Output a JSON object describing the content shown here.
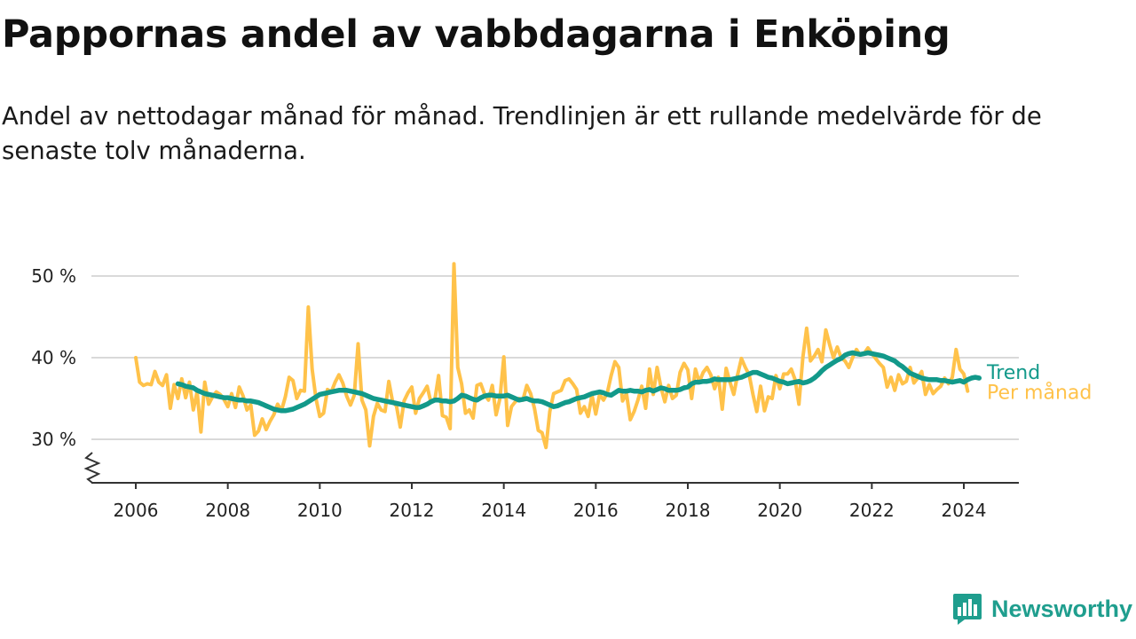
{
  "title": "Pappornas andel av vabbdagarna i Enköping",
  "subtitle": "Andel av nettodagar månad för månad. Trendlinjen är ett rullande medelvärde för de senaste tolv månaderna.",
  "brand": {
    "name": "Newsworthy",
    "color": "#1f9e8e"
  },
  "colors": {
    "monthly": "#ffc24a",
    "trend": "#12998a",
    "grid": "#d9d9d9",
    "axis": "#333333"
  },
  "chart_data": {
    "type": "line",
    "xlabel": "",
    "ylabel": "",
    "ylim": [
      25,
      52
    ],
    "y_ticks": [
      30,
      40,
      50
    ],
    "y_tick_labels": [
      "30 %",
      "40 %",
      "50 %"
    ],
    "x_ticks": [
      2006,
      2008,
      2010,
      2012,
      2014,
      2016,
      2018,
      2020,
      2022,
      2024
    ],
    "x_tick_labels": [
      "2006",
      "2008",
      "2010",
      "2012",
      "2014",
      "2016",
      "2018",
      "2020",
      "2022",
      "2024"
    ],
    "grid": true,
    "axis_break": true,
    "legend": "right-end",
    "series": [
      {
        "name": "Per månad",
        "label": "Per månad",
        "x_start": 2006.0,
        "step": 0.08333,
        "values": [
          40.0,
          37.0,
          36.6,
          36.8,
          36.7,
          38.3,
          37.0,
          36.6,
          37.9,
          33.8,
          36.7,
          35.0,
          37.4,
          35.1,
          37.0,
          33.6,
          35.8,
          30.9,
          37.0,
          34.3,
          35.2,
          35.8,
          35.5,
          34.9,
          34.0,
          35.6,
          33.9,
          36.4,
          35.3,
          33.6,
          34.2,
          30.5,
          31.0,
          32.5,
          31.2,
          32.2,
          33.0,
          34.3,
          33.5,
          35.2,
          37.6,
          37.2,
          35.0,
          36.0,
          35.9,
          46.2,
          38.6,
          35.0,
          32.8,
          33.2,
          36.1,
          35.8,
          37.0,
          37.9,
          36.9,
          35.3,
          34.2,
          35.4,
          41.7,
          34.8,
          33.6,
          29.2,
          32.8,
          34.4,
          33.6,
          33.4,
          37.1,
          34.6,
          34.1,
          31.5,
          34.7,
          35.7,
          36.4,
          33.2,
          35.0,
          35.7,
          36.5,
          34.5,
          34.8,
          37.8,
          32.9,
          32.7,
          31.3,
          51.5,
          38.8,
          36.8,
          33.2,
          33.6,
          32.6,
          36.6,
          36.8,
          35.5,
          34.8,
          36.6,
          33.0,
          35.0,
          40.1,
          31.7,
          34.0,
          34.6,
          35.0,
          34.8,
          36.6,
          35.6,
          33.8,
          31.1,
          30.8,
          29.0,
          33.4,
          35.6,
          35.8,
          36.0,
          37.2,
          37.4,
          36.8,
          36.1,
          33.2,
          34.0,
          32.8,
          35.4,
          33.1,
          35.5,
          34.8,
          35.7,
          37.8,
          39.5,
          38.8,
          34.7,
          35.6,
          32.4,
          33.4,
          34.8,
          36.5,
          33.8,
          38.6,
          35.5,
          38.8,
          36.4,
          34.6,
          36.6,
          35.0,
          35.4,
          38.2,
          39.3,
          38.5,
          35.0,
          38.6,
          37.0,
          38.2,
          38.8,
          37.9,
          36.2,
          37.6,
          33.7,
          38.7,
          37.0,
          35.5,
          37.9,
          39.9,
          38.8,
          37.9,
          35.5,
          33.4,
          36.5,
          33.5,
          35.2,
          35.0,
          37.8,
          36.2,
          38.0,
          38.0,
          38.6,
          37.3,
          34.3,
          40.0,
          43.6,
          39.6,
          40.2,
          41.0,
          39.5,
          43.4,
          41.6,
          40.0,
          41.3,
          40.0,
          39.6,
          38.8,
          40.0,
          41.0,
          40.3,
          40.5,
          41.2,
          40.5,
          39.9,
          39.3,
          38.8,
          36.4,
          37.6,
          36.0,
          37.9,
          36.8,
          37.1,
          38.8,
          36.9,
          37.5,
          38.3,
          35.5,
          36.7,
          35.6,
          36.1,
          36.5,
          37.5,
          36.8,
          37.6,
          41.0,
          38.6,
          38.0,
          35.9
        ]
      },
      {
        "name": "Trend",
        "label": "Trend",
        "x_start": 2006.917,
        "step": 0.08333,
        "values": [
          36.8,
          36.7,
          36.5,
          36.4,
          36.3,
          36.0,
          35.8,
          35.6,
          35.5,
          35.4,
          35.3,
          35.2,
          35.1,
          35.1,
          35.0,
          34.9,
          34.8,
          34.8,
          34.7,
          34.7,
          34.6,
          34.5,
          34.3,
          34.1,
          33.9,
          33.7,
          33.6,
          33.5,
          33.5,
          33.6,
          33.7,
          33.9,
          34.1,
          34.3,
          34.6,
          34.9,
          35.2,
          35.5,
          35.6,
          35.7,
          35.8,
          35.9,
          36.0,
          36.0,
          36.0,
          35.9,
          35.8,
          35.7,
          35.6,
          35.4,
          35.2,
          35.0,
          34.9,
          34.8,
          34.7,
          34.6,
          34.5,
          34.4,
          34.3,
          34.2,
          34.1,
          34.0,
          33.9,
          33.9,
          34.1,
          34.3,
          34.6,
          34.8,
          34.8,
          34.7,
          34.7,
          34.6,
          34.7,
          35.0,
          35.4,
          35.3,
          35.1,
          34.9,
          34.8,
          35.1,
          35.3,
          35.4,
          35.4,
          35.3,
          35.3,
          35.3,
          35.4,
          35.2,
          35.0,
          34.8,
          34.9,
          35.0,
          34.8,
          34.7,
          34.7,
          34.6,
          34.4,
          34.2,
          34.0,
          34.1,
          34.3,
          34.5,
          34.6,
          34.8,
          35.0,
          35.1,
          35.2,
          35.4,
          35.6,
          35.7,
          35.8,
          35.7,
          35.5,
          35.4,
          35.7,
          36.0,
          35.9,
          35.9,
          36.0,
          35.9,
          35.9,
          35.8,
          36.0,
          36.1,
          35.9,
          36.1,
          36.3,
          36.2,
          36.0,
          36.0,
          36.0,
          36.1,
          36.3,
          36.4,
          36.8,
          37.0,
          37.0,
          37.1,
          37.1,
          37.2,
          37.4,
          37.3,
          37.3,
          37.3,
          37.3,
          37.4,
          37.5,
          37.6,
          37.8,
          38.0,
          38.2,
          38.2,
          38.0,
          37.8,
          37.6,
          37.5,
          37.3,
          37.1,
          37.0,
          36.8,
          36.9,
          37.0,
          37.1,
          36.9,
          37.0,
          37.2,
          37.5,
          37.9,
          38.4,
          38.8,
          39.1,
          39.4,
          39.7,
          39.9,
          40.3,
          40.5,
          40.6,
          40.5,
          40.4,
          40.5,
          40.6,
          40.5,
          40.4,
          40.3,
          40.2,
          40.0,
          39.8,
          39.6,
          39.2,
          38.9,
          38.5,
          38.1,
          37.9,
          37.7,
          37.5,
          37.4,
          37.3,
          37.3,
          37.3,
          37.2,
          37.2,
          37.1,
          37.0,
          37.1,
          37.2,
          37.0,
          37.3,
          37.5,
          37.6,
          37.5
        ]
      }
    ]
  }
}
